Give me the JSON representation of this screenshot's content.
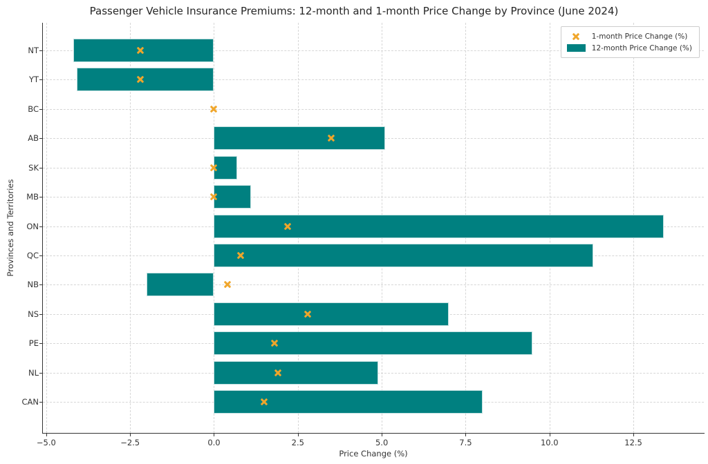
{
  "title": "Passenger Vehicle Insurance Premiums: 12-month and 1-month Price Change by Province (June 2024)",
  "colors": {
    "bar_fill": "#008080",
    "bar_border": "#c2e0e0",
    "marker_orange": "#f0a62b",
    "grid": "#d6d6d6",
    "spine": "#333333",
    "text": "#333333"
  },
  "chart_data": {
    "type": "bar",
    "orientation": "horizontal",
    "title": "Passenger Vehicle Insurance Premiums: 12-month and 1-month Price Change by Province (June 2024)",
    "xlabel": "Price Change (%)",
    "ylabel": "Provinces and Territories",
    "categories": [
      "NT",
      "YT",
      "BC",
      "AB",
      "SK",
      "MB",
      "ON",
      "QC",
      "NB",
      "NS",
      "PE",
      "NL",
      "CAN"
    ],
    "series": [
      {
        "name": "1-month Price Change (%)",
        "type": "scatter",
        "marker": "x",
        "color": "#f0a62b",
        "values": [
          -2.2,
          -2.2,
          0.0,
          3.5,
          0.0,
          0.0,
          2.2,
          0.8,
          0.4,
          2.8,
          1.8,
          1.9,
          1.5
        ]
      },
      {
        "name": "12-month Price Change (%)",
        "type": "bar",
        "color": "#008080",
        "values": [
          -4.2,
          -4.1,
          0.0,
          5.1,
          0.7,
          1.1,
          13.4,
          11.3,
          -2.0,
          7.0,
          9.5,
          4.9,
          8.0
        ]
      }
    ],
    "xlim": [
      -5.1,
      14.6
    ],
    "xticks": [
      -5.0,
      -2.5,
      0.0,
      2.5,
      5.0,
      7.5,
      10.0,
      12.5
    ],
    "grid": true,
    "grid_style": "dashed",
    "legend_position": "top-right"
  }
}
